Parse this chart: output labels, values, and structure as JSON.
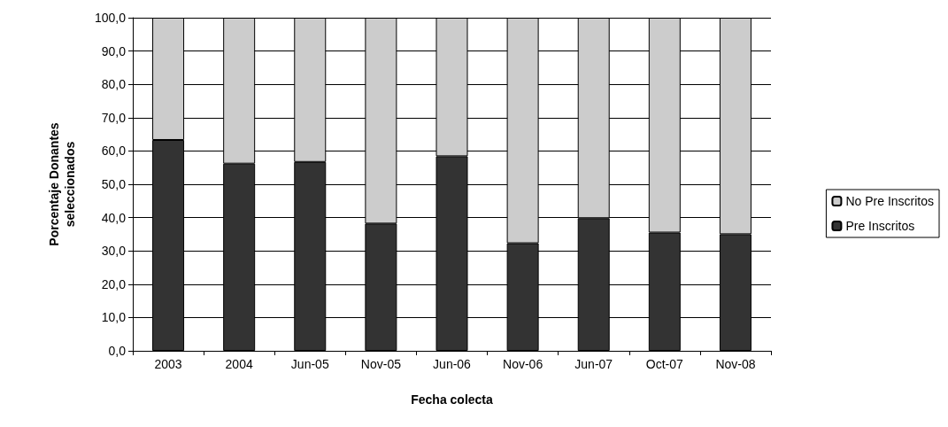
{
  "chart_data": {
    "type": "bar",
    "stacked": true,
    "xlabel": "Fecha colecta",
    "ylabel": "Porcentaje Donantes\nseleccionados",
    "categories": [
      "2003",
      "2004",
      "Jun-05",
      "Nov-05",
      "Jun-06",
      "Nov-06",
      "Jun-07",
      "Oct-07",
      "Nov-08"
    ],
    "series": [
      {
        "name": "Pre Inscritos",
        "color": "#333333",
        "values": [
          63.3,
          56.2,
          56.7,
          38.2,
          58.4,
          32.3,
          39.8,
          35.5,
          35.0
        ]
      },
      {
        "name": "No Pre Inscritos",
        "color": "#cccccc",
        "values": [
          36.7,
          43.8,
          43.3,
          61.8,
          41.6,
          67.7,
          60.2,
          64.5,
          65.0
        ]
      }
    ],
    "ylim": [
      0,
      100
    ],
    "yticks": [
      {
        "value": 0,
        "label": "0,0"
      },
      {
        "value": 10,
        "label": "10,0"
      },
      {
        "value": 20,
        "label": "20,0"
      },
      {
        "value": 30,
        "label": "30,0"
      },
      {
        "value": 40,
        "label": "40,0"
      },
      {
        "value": 50,
        "label": "50,0"
      },
      {
        "value": 60,
        "label": "60,0"
      },
      {
        "value": 70,
        "label": "70,0"
      },
      {
        "value": 80,
        "label": "80,0"
      },
      {
        "value": 90,
        "label": "90,0"
      },
      {
        "value": 100,
        "label": "100,0"
      }
    ],
    "grid": "y",
    "legend": "right"
  }
}
